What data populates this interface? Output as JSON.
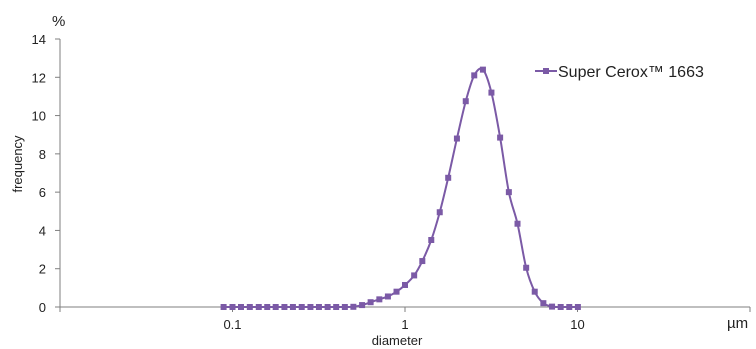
{
  "chart_data": {
    "type": "line",
    "x_scale": "log",
    "xlabel": "diameter",
    "ylabel": "frequency",
    "x_unit": "µm",
    "y_unit": "%",
    "xlim": [
      0.01,
      100
    ],
    "ylim": [
      0,
      14
    ],
    "x_ticks": [
      {
        "value": 0.1,
        "label": "0.1"
      },
      {
        "value": 1,
        "label": "1"
      },
      {
        "value": 10,
        "label": "10"
      }
    ],
    "y_ticks": [
      {
        "value": 0,
        "label": "0"
      },
      {
        "value": 2,
        "label": "2"
      },
      {
        "value": 4,
        "label": "4"
      },
      {
        "value": 6,
        "label": "6"
      },
      {
        "value": 8,
        "label": "8"
      },
      {
        "value": 10,
        "label": "10"
      },
      {
        "value": 12,
        "label": "12"
      },
      {
        "value": 14,
        "label": "14"
      }
    ],
    "grid": false,
    "legend_position": "top-right",
    "color": "#7b5aa6",
    "series": [
      {
        "name": "Super Cerox™ 1663",
        "points": [
          [
            0.0888,
            0
          ],
          [
            0.1,
            0
          ],
          [
            0.112,
            0
          ],
          [
            0.126,
            0
          ],
          [
            0.142,
            0
          ],
          [
            0.159,
            0
          ],
          [
            0.178,
            0
          ],
          [
            0.2,
            0
          ],
          [
            0.224,
            0
          ],
          [
            0.252,
            0
          ],
          [
            0.283,
            0
          ],
          [
            0.317,
            0
          ],
          [
            0.356,
            0
          ],
          [
            0.399,
            0
          ],
          [
            0.448,
            0
          ],
          [
            0.502,
            0.01
          ],
          [
            0.564,
            0.1
          ],
          [
            0.632,
            0.25
          ],
          [
            0.71,
            0.4
          ],
          [
            0.796,
            0.55
          ],
          [
            0.893,
            0.8
          ],
          [
            1.0,
            1.15
          ],
          [
            1.13,
            1.65
          ],
          [
            1.26,
            2.4
          ],
          [
            1.42,
            3.5
          ],
          [
            1.59,
            4.95
          ],
          [
            1.78,
            6.75
          ],
          [
            2.0,
            8.8
          ],
          [
            2.25,
            10.75
          ],
          [
            2.52,
            12.1
          ],
          [
            2.83,
            12.4
          ],
          [
            3.17,
            11.2
          ],
          [
            3.56,
            8.85
          ],
          [
            4.0,
            6.0
          ],
          [
            4.49,
            4.35
          ],
          [
            5.04,
            2.05
          ],
          [
            5.65,
            0.8
          ],
          [
            6.34,
            0.2
          ],
          [
            7.12,
            0.02
          ],
          [
            7.99,
            0
          ],
          [
            8.96,
            0
          ],
          [
            10.05,
            0
          ]
        ]
      }
    ]
  }
}
